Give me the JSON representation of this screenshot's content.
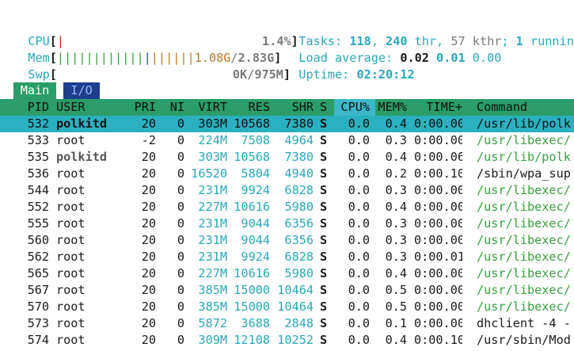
{
  "meters": {
    "cpu": {
      "label": "CPU",
      "value": "1.4%"
    },
    "mem": {
      "label": "Mem",
      "used": "1.08G",
      "total": "2.83G"
    },
    "swp": {
      "label": "Swp",
      "value": "0K/975M"
    }
  },
  "summary": {
    "tasks_label": "Tasks: ",
    "tasks": "118",
    "thr": "240",
    "thr_label": " thr, ",
    "kthr": "57",
    "kthr_label": " kthr",
    "running": "1",
    "running_label": " runnin",
    "load_label": "Load average: ",
    "load1": "0.02",
    "load5": "0.01",
    "load15": "0.00",
    "uptime_label": "Uptime: ",
    "uptime": "02:20:12"
  },
  "tabs": [
    "Main",
    "I/O"
  ],
  "columns": [
    "PID",
    "USER",
    "PRI",
    "NI",
    "VIRT",
    "RES",
    "SHR",
    "S",
    "CPU%",
    "MEM%",
    "TIME+",
    "Command"
  ],
  "processes": [
    {
      "pid": "532",
      "user": "polkitd",
      "pri": "20",
      "ni": "0",
      "virt": "303M",
      "res": "10568",
      "shr": "7380",
      "s": "S",
      "cpu": "0.0",
      "mem": "0.4",
      "time": "0:00.00",
      "cmd": "/usr/lib/polk",
      "selected": true
    },
    {
      "pid": "533",
      "user": "root",
      "pri": "-2",
      "ni": "0",
      "virt": "224M",
      "res": "7508",
      "shr": "4964",
      "s": "S",
      "cpu": "0.0",
      "mem": "0.3",
      "time": "0:00.00",
      "cmd": "/usr/libexec/"
    },
    {
      "pid": "535",
      "user": "polkitd",
      "pri": "20",
      "ni": "0",
      "virt": "303M",
      "res": "10568",
      "shr": "7380",
      "s": "S",
      "cpu": "0.0",
      "mem": "0.4",
      "time": "0:00.06",
      "cmd": "/usr/lib/polk"
    },
    {
      "pid": "536",
      "user": "root",
      "pri": "20",
      "ni": "0",
      "virt": "16520",
      "res": "5804",
      "shr": "4940",
      "s": "S",
      "cpu": "0.0",
      "mem": "0.2",
      "time": "0:00.10",
      "cmd": "/sbin/wpa_sup"
    },
    {
      "pid": "544",
      "user": "root",
      "pri": "20",
      "ni": "0",
      "virt": "231M",
      "res": "9924",
      "shr": "6828",
      "s": "S",
      "cpu": "0.0",
      "mem": "0.3",
      "time": "0:00.00",
      "cmd": "/usr/libexec/"
    },
    {
      "pid": "552",
      "user": "root",
      "pri": "20",
      "ni": "0",
      "virt": "227M",
      "res": "10616",
      "shr": "5980",
      "s": "S",
      "cpu": "0.0",
      "mem": "0.4",
      "time": "0:00.00",
      "cmd": "/usr/libexec/"
    },
    {
      "pid": "555",
      "user": "root",
      "pri": "20",
      "ni": "0",
      "virt": "231M",
      "res": "9044",
      "shr": "6356",
      "s": "S",
      "cpu": "0.0",
      "mem": "0.3",
      "time": "0:00.00",
      "cmd": "/usr/libexec/"
    },
    {
      "pid": "560",
      "user": "root",
      "pri": "20",
      "ni": "0",
      "virt": "231M",
      "res": "9044",
      "shr": "6356",
      "s": "S",
      "cpu": "0.0",
      "mem": "0.3",
      "time": "0:00.00",
      "cmd": "/usr/libexec/"
    },
    {
      "pid": "562",
      "user": "root",
      "pri": "20",
      "ni": "0",
      "virt": "231M",
      "res": "9924",
      "shr": "6828",
      "s": "S",
      "cpu": "0.0",
      "mem": "0.3",
      "time": "0:00.01",
      "cmd": "/usr/libexec/"
    },
    {
      "pid": "565",
      "user": "root",
      "pri": "20",
      "ni": "0",
      "virt": "227M",
      "res": "10616",
      "shr": "5980",
      "s": "S",
      "cpu": "0.0",
      "mem": "0.4",
      "time": "0:00.00",
      "cmd": "/usr/libexec/"
    },
    {
      "pid": "567",
      "user": "root",
      "pri": "20",
      "ni": "0",
      "virt": "385M",
      "res": "15000",
      "shr": "10464",
      "s": "S",
      "cpu": "0.0",
      "mem": "0.5",
      "time": "0:00.00",
      "cmd": "/usr/libexec/"
    },
    {
      "pid": "570",
      "user": "root",
      "pri": "20",
      "ni": "0",
      "virt": "385M",
      "res": "15000",
      "shr": "10464",
      "s": "S",
      "cpu": "0.0",
      "mem": "0.5",
      "time": "0:00.00",
      "cmd": "/usr/libexec/"
    },
    {
      "pid": "573",
      "user": "root",
      "pri": "20",
      "ni": "0",
      "virt": "5872",
      "res": "3688",
      "shr": "2848",
      "s": "S",
      "cpu": "0.0",
      "mem": "0.1",
      "time": "0:00.00",
      "cmd": "dhclient -4 -"
    },
    {
      "pid": "574",
      "user": "root",
      "pri": "20",
      "ni": "0",
      "virt": "309M",
      "res": "12108",
      "shr": "10252",
      "s": "S",
      "cpu": "0.0",
      "mem": "0.4",
      "time": "0:00.10",
      "cmd": "/usr/sbin/Mod"
    }
  ],
  "colors": {
    "header_bg": "#2a9d68",
    "sort_col_bg": "#3cb8c8",
    "selected_row_bg": "#2ab0c0",
    "accent": "#2aa8b8"
  }
}
